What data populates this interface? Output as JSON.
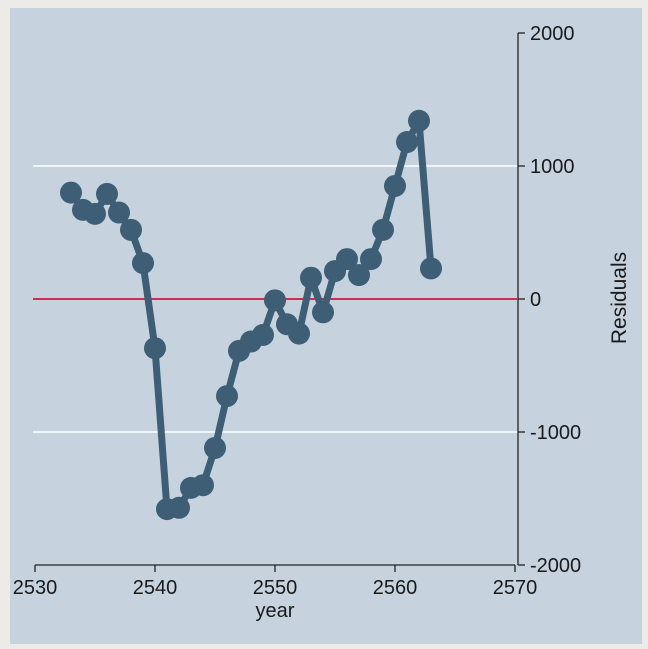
{
  "chart_data": {
    "type": "line",
    "title": "",
    "xlabel": "year",
    "ylabel": "Residuals",
    "xlim": [
      2530,
      2570
    ],
    "ylim": [
      -2000,
      2000
    ],
    "xticks": [
      2530,
      2540,
      2550,
      2560,
      2570
    ],
    "yticks": [
      -2000,
      -1000,
      0,
      1000,
      2000
    ],
    "gridlines": [
      -1000,
      1000
    ],
    "reference_line": 0,
    "grid": true,
    "legend": "none",
    "y_axis_side": "right",
    "colors": {
      "background": "#c6d3df",
      "series": "#3d5e74",
      "grid": "#ffffff",
      "reference": "#c8193c"
    },
    "series": [
      {
        "x": [
          2533,
          2534,
          2535,
          2536,
          2537,
          2538,
          2539,
          2540,
          2541,
          2542,
          2543,
          2544,
          2545,
          2546,
          2547,
          2548,
          2549,
          2550,
          2551,
          2552,
          2553,
          2554,
          2555,
          2556,
          2557,
          2558,
          2559,
          2560,
          2561,
          2562,
          2563
        ],
        "values": [
          800,
          670,
          640,
          790,
          650,
          520,
          270,
          -370,
          -1580,
          -1570,
          -1420,
          -1400,
          -1120,
          -730,
          -390,
          -320,
          -270,
          -10,
          -190,
          -260,
          160,
          -100,
          210,
          300,
          180,
          300,
          520,
          850,
          1180,
          1340,
          230
        ]
      }
    ]
  }
}
